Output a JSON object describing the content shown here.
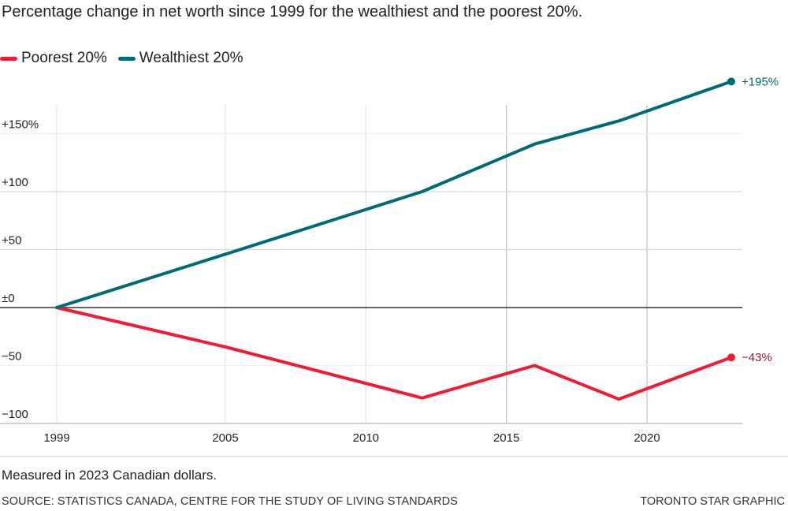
{
  "title": "Percentage change in net worth since 1999 for the wealthiest and the poorest 20%.",
  "legend": [
    {
      "label": "Poorest 20%",
      "color": "#f01c34"
    },
    {
      "label": "Wealthiest 20%",
      "color": "#006b75"
    }
  ],
  "note": "Measured in 2023 Canadian dollars.",
  "source": "SOURCE: STATISTICS CANADA, CENTRE FOR THE STUDY OF LIVING STANDARDS",
  "credit": "TORONTO STAR GRAPHIC",
  "chart_data": {
    "type": "line",
    "title": "Percentage change in net worth since 1999 for the wealthiest and the poorest 20%.",
    "xlabel": "",
    "ylabel": "",
    "xlim": [
      1999,
      2023
    ],
    "ylim": [
      -100,
      200
    ],
    "x_ticks": [
      1999,
      2005,
      2010,
      2015,
      2020
    ],
    "x_tick_labels": [
      "1999",
      "2005",
      "2010",
      "2015",
      "2020"
    ],
    "y_ticks": [
      -100,
      -50,
      0,
      50,
      100,
      150
    ],
    "y_tick_labels": [
      "−100",
      "−50",
      "±0",
      "+50",
      "+100",
      "+150%"
    ],
    "grid": true,
    "legend_position": "top-left",
    "series": [
      {
        "name": "Poorest 20%",
        "color": "#f01c34",
        "label_color": "#b0102a",
        "x": [
          1999,
          2005,
          2012,
          2016,
          2019,
          2023
        ],
        "values": [
          0,
          -34,
          -78,
          -50,
          -79,
          -43
        ],
        "end_label": "−43%"
      },
      {
        "name": "Wealthiest 20%",
        "color": "#006b75",
        "label_color": "#006b75",
        "x": [
          1999,
          2005,
          2012,
          2016,
          2019,
          2023
        ],
        "values": [
          0,
          46,
          100,
          141,
          161,
          195
        ],
        "end_label": "+195%"
      }
    ]
  }
}
